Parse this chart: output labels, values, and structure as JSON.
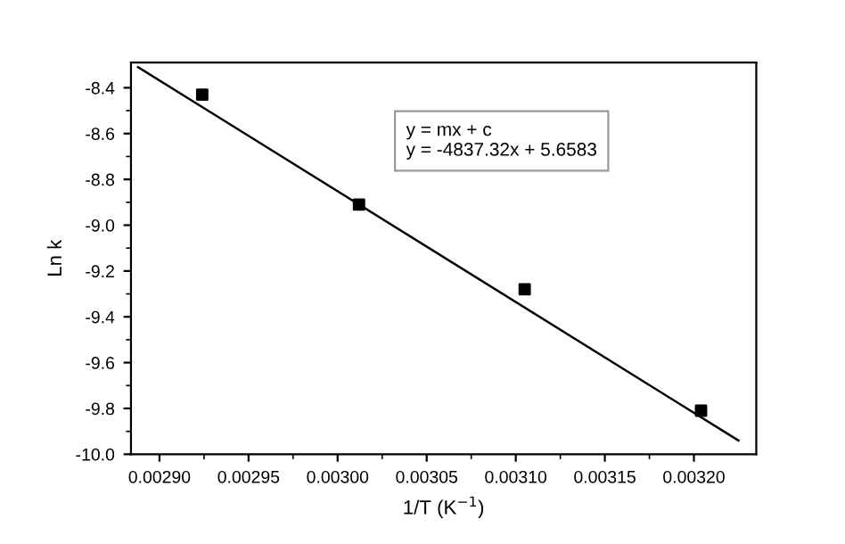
{
  "chart_data": {
    "type": "scatter",
    "xlabel": "1/T (K$^{−1}$)",
    "ylabel": "Ln k",
    "annotations": [
      "y = mx + c",
      "y = -4837.32x + 5.6583"
    ],
    "grid": false,
    "legend": false,
    "xlim": [
      0.002884,
      0.003235
    ],
    "ylim": [
      -10.0,
      -8.29
    ],
    "xticks": [
      {
        "value": 0.0029,
        "label": "0.00290"
      },
      {
        "value": 0.00295,
        "label": "0.00295"
      },
      {
        "value": 0.003,
        "label": "0.00300"
      },
      {
        "value": 0.00305,
        "label": "0.00305"
      },
      {
        "value": 0.0031,
        "label": "0.00310"
      },
      {
        "value": 0.00315,
        "label": "0.00315"
      },
      {
        "value": 0.0032,
        "label": "0.00320"
      }
    ],
    "yticks": [
      {
        "value": -8.4,
        "label": "-8.4"
      },
      {
        "value": -8.6,
        "label": "-8.6"
      },
      {
        "value": -8.8,
        "label": "-8.8"
      },
      {
        "value": -9.0,
        "label": "-9.0"
      },
      {
        "value": -9.2,
        "label": "-9.2"
      },
      {
        "value": -9.4,
        "label": "-9.4"
      },
      {
        "value": -9.6,
        "label": "-9.6"
      },
      {
        "value": -9.8,
        "label": "-9.8"
      },
      {
        "value": -10.0,
        "label": "-10.0"
      }
    ],
    "series": [
      {
        "marker": "square",
        "color": "#000000",
        "x": [
          0.002924,
          0.003012,
          0.003105,
          0.003204
        ],
        "values": [
          -8.43,
          -8.91,
          -9.28,
          -9.81
        ]
      },
      {
        "type": "line",
        "marker": "none",
        "color": "#000000",
        "x": [
          0.002888,
          0.003225
        ],
        "values": [
          -8.31,
          -9.94
        ]
      }
    ]
  }
}
